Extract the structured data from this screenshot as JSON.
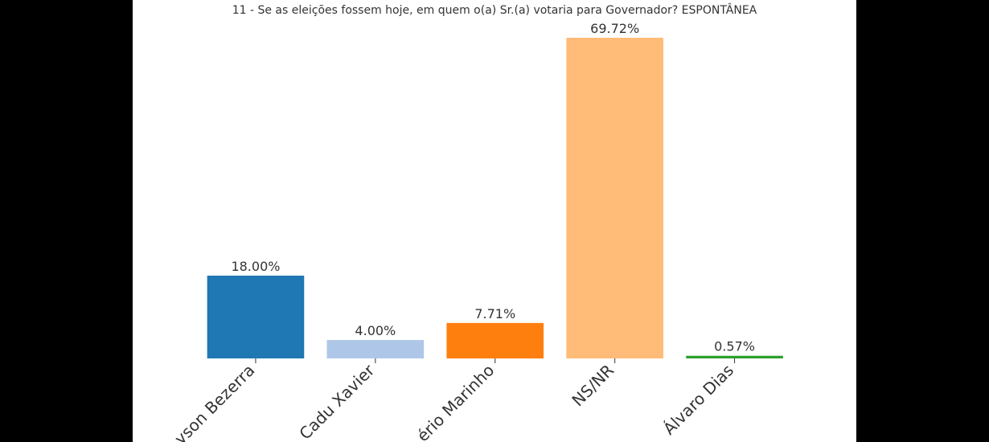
{
  "chart_data": {
    "type": "bar",
    "title": "11 - Se as eleições fossem hoje, em quem o(a) Sr.(a) votaria para Governador? ESPONTÂNEA",
    "categories": [
      "yson Bezerra",
      "Cadu Xavier",
      "ério Marinho",
      "NS/NR",
      "Álvaro Dias"
    ],
    "values": [
      18.0,
      4.0,
      7.71,
      69.72,
      0.57
    ],
    "value_labels": [
      "18.00%",
      "4.00%",
      "7.71%",
      "69.72%",
      "0.57%"
    ],
    "colors": [
      "#1f77b4",
      "#aec7e8",
      "#ff7f0e",
      "#ffbb78",
      "#2ca02c"
    ]
  }
}
